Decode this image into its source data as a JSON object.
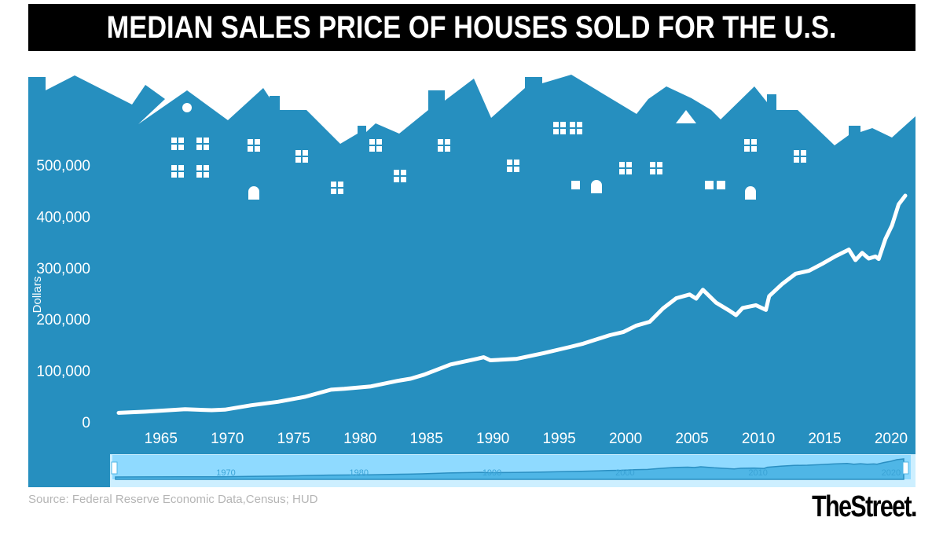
{
  "title": "MEDIAN SALES PRICE OF HOUSES SOLD FOR THE U.S.",
  "source": "Source:  Federal Reserve Economic Data,Census; HUD",
  "logo": "TheStreet.",
  "colors": {
    "panel": "#268fbf",
    "line": "#ffffff",
    "navigator": "#8fdaff",
    "navigator_series": "#4fb6e6",
    "banner": "#000000"
  },
  "chart_data": {
    "type": "line",
    "title": "MEDIAN SALES PRICE OF HOUSES SOLD FOR THE U.S.",
    "ylabel": "Dollars",
    "xlabel": "",
    "ylim": [
      0,
      500000
    ],
    "xlim": [
      1963,
      2022.25
    ],
    "yticks": [
      "0",
      "100,000",
      "200,000",
      "300,000",
      "400,000",
      "500,000"
    ],
    "ytick_values": [
      0,
      100000,
      200000,
      300000,
      400000,
      500000
    ],
    "xticks": [
      "1965",
      "1970",
      "1975",
      "1980",
      "1985",
      "1990",
      "1995",
      "2000",
      "2005",
      "2010",
      "2015",
      "2020"
    ],
    "navigator_ticks": [
      "1970",
      "1980",
      "1990",
      "2000",
      "2010",
      "2020"
    ],
    "grid": false,
    "legend": "none",
    "x": [
      1963,
      1965,
      1968,
      1970,
      1971,
      1973,
      1975,
      1977,
      1979,
      1980,
      1982,
      1984,
      1985,
      1986,
      1988,
      1990,
      1990.5,
      1991,
      1993,
      1995,
      1997,
      1998,
      2000,
      2001,
      2002,
      2003,
      2004,
      2005,
      2006,
      2006.5,
      2007,
      2008,
      2009,
      2009.5,
      2010,
      2011,
      2011.75,
      2012,
      2013,
      2014,
      2015,
      2016,
      2017,
      2018,
      2018.5,
      2019,
      2019.5,
      2020,
      2020.25,
      2020.75,
      2021.25,
      2021.75,
      2022.25
    ],
    "values": [
      17800,
      20000,
      24700,
      23000,
      24000,
      32500,
      39300,
      48800,
      62900,
      64600,
      69300,
      80000,
      84300,
      92000,
      112000,
      123000,
      126000,
      120000,
      123000,
      133900,
      146000,
      152500,
      169000,
      175000,
      187600,
      195000,
      221000,
      240900,
      248000,
      240000,
      257400,
      232100,
      216700,
      208000,
      221800,
      227200,
      218000,
      245000,
      268900,
      288500,
      294200,
      307800,
      322600,
      335400,
      315000,
      329000,
      318000,
      322000,
      317100,
      355900,
      382600,
      423600,
      440300
    ]
  }
}
